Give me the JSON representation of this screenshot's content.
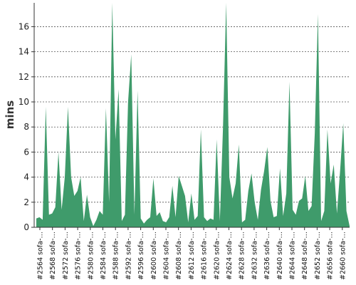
{
  "chart_data": {
    "type": "area",
    "title": "",
    "xlabel": "",
    "ylabel": "mins",
    "ylim": [
      0,
      17.9
    ],
    "yticks": [
      0,
      2,
      4,
      6,
      8,
      10,
      12,
      14,
      16
    ],
    "grid": true,
    "color": "#3f9b6b",
    "tick_labels": [
      "#2564 sofa-…",
      "#2568 sofa-…",
      "#2572 sofa-…",
      "#2576 sofa-…",
      "#2580 sofa-…",
      "#2584 sofa-…",
      "#2588 sofa-…",
      "#2592 sofa-…",
      "#2596 sofa-…",
      "#2600 sofa-…",
      "#2604 sofa-…",
      "#2608 sofa-…",
      "#2612 sofa-…",
      "#2616 sofa-…",
      "#2620 sofa-…",
      "#2624 sofa-…",
      "#2628 sofa-…",
      "#2632 sofa-…",
      "#2636 sofa-…",
      "#2640 sofa-…",
      "#2644 sofa-…",
      "#2648 sofa-…",
      "#2652 sofa-…",
      "#2656 sofa-…",
      "#2660 sofa-…"
    ],
    "series": [
      {
        "values": [
          0.7,
          0.8,
          0.6,
          9.6,
          1.0,
          1.1,
          1.6,
          6.0,
          1.4,
          4.0,
          9.6,
          4.0,
          2.5,
          2.9,
          4.0,
          0.5,
          2.6,
          0.8,
          0.1,
          0.6,
          1.3,
          1.0,
          9.5,
          2.0,
          17.9,
          7.0,
          11.0,
          0.5,
          1.0,
          10.0,
          13.8,
          1.0,
          10.9,
          0.7,
          0.3,
          0.6,
          0.8,
          3.9,
          0.9,
          1.2,
          0.5,
          0.4,
          0.8,
          3.3,
          0.8,
          4.1,
          3.3,
          2.5,
          0.4,
          2.7,
          0.6,
          0.9,
          7.8,
          0.8,
          0.5,
          0.7,
          0.6,
          7.0,
          0.5,
          8.0,
          17.9,
          4.0,
          2.3,
          3.5,
          6.6,
          0.4,
          0.6,
          2.9,
          4.3,
          2.0,
          0.6,
          3.0,
          4.5,
          6.4,
          2.1,
          0.8,
          0.9,
          4.7,
          0.9,
          2.7,
          11.6,
          1.4,
          1.0,
          2.1,
          2.3,
          4.1,
          1.3,
          1.7,
          7.5,
          17.0,
          0.5,
          1.3,
          7.8,
          3.5,
          5.0,
          1.1,
          4.5,
          8.3,
          1.3,
          0.1
        ]
      }
    ]
  }
}
